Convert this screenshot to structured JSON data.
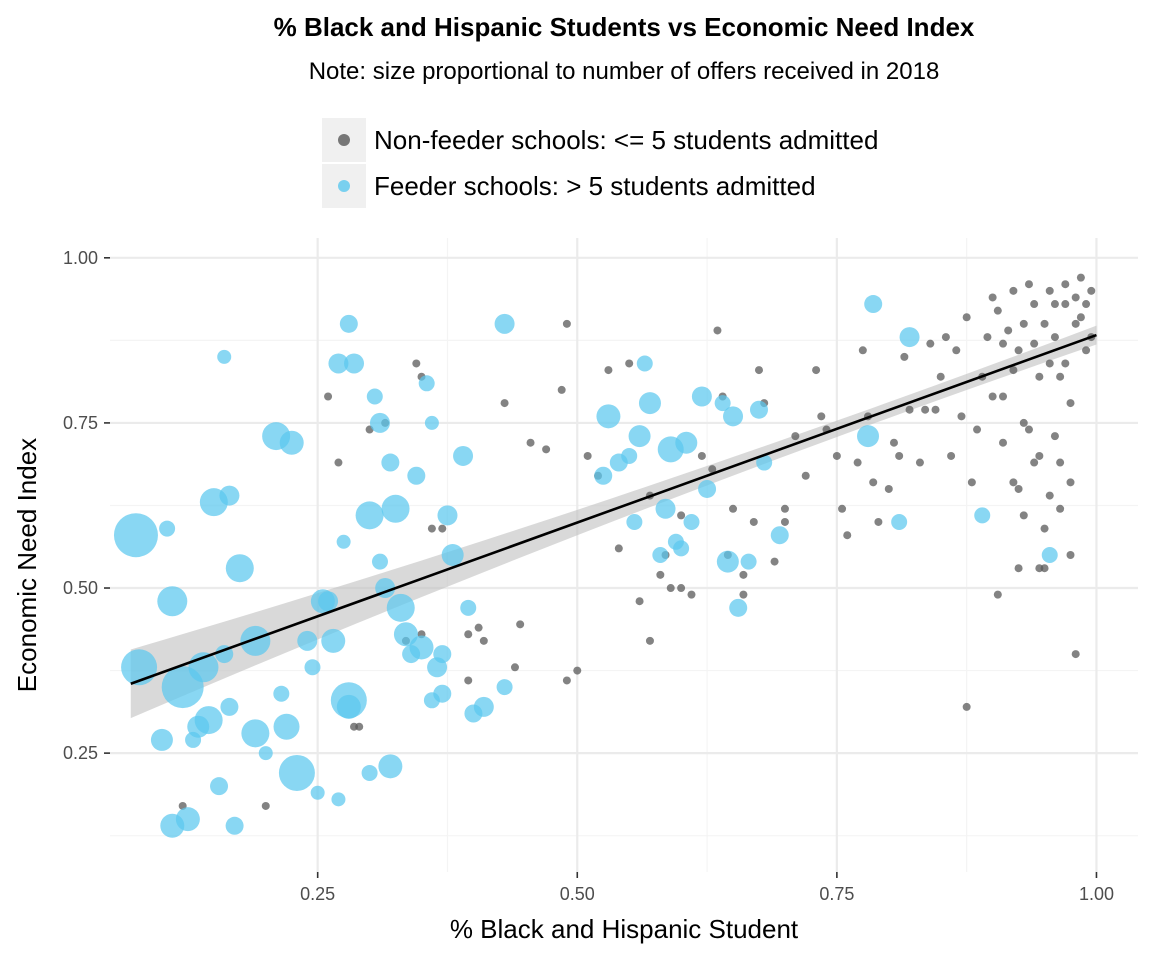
{
  "chart_data": {
    "type": "scatter",
    "title": "% Black and Hispanic Students vs Economic Need Index",
    "subtitle": "Note: size proportional to number of offers received in 2018",
    "xlabel": "% Black and Hispanic Student",
    "ylabel": "Economic Need Index",
    "xlim": [
      0.05,
      1.04
    ],
    "ylim": [
      0.07,
      1.03
    ],
    "x_ticks": [
      "0.25",
      "0.50",
      "0.75",
      "1.00"
    ],
    "y_ticks": [
      "0.25",
      "0.50",
      "0.75",
      "1.00"
    ],
    "grid": true,
    "legend_position": "top",
    "colors": {
      "non_feeder": "#595959",
      "feeder": "#5bc8ef",
      "trend": "#000000",
      "band": "#bfbfbf"
    },
    "trend_line": {
      "x": [
        0.07,
        1.0
      ],
      "y": [
        0.355,
        0.883
      ]
    },
    "series": [
      {
        "name": "Non-feeder schools: <= 5 students admitted",
        "key": "non_feeder",
        "points": [
          [
            0.26,
            0.79
          ],
          [
            0.27,
            0.69
          ],
          [
            0.285,
            0.29
          ],
          [
            0.29,
            0.29
          ],
          [
            0.3,
            0.74
          ],
          [
            0.315,
            0.75
          ],
          [
            0.345,
            0.84
          ],
          [
            0.35,
            0.82
          ],
          [
            0.36,
            0.59
          ],
          [
            0.37,
            0.59
          ],
          [
            0.395,
            0.43
          ],
          [
            0.405,
            0.44
          ],
          [
            0.43,
            0.78
          ],
          [
            0.44,
            0.38
          ],
          [
            0.445,
            0.445
          ],
          [
            0.455,
            0.72
          ],
          [
            0.47,
            0.71
          ],
          [
            0.485,
            0.8
          ],
          [
            0.49,
            0.9
          ],
          [
            0.49,
            0.36
          ],
          [
            0.5,
            0.375
          ],
          [
            0.51,
            0.7
          ],
          [
            0.52,
            0.67
          ],
          [
            0.53,
            0.83
          ],
          [
            0.54,
            0.56
          ],
          [
            0.55,
            0.84
          ],
          [
            0.56,
            0.48
          ],
          [
            0.57,
            0.64
          ],
          [
            0.58,
            0.52
          ],
          [
            0.585,
            0.55
          ],
          [
            0.59,
            0.5
          ],
          [
            0.6,
            0.61
          ],
          [
            0.61,
            0.49
          ],
          [
            0.62,
            0.7
          ],
          [
            0.63,
            0.68
          ],
          [
            0.635,
            0.89
          ],
          [
            0.64,
            0.79
          ],
          [
            0.645,
            0.55
          ],
          [
            0.65,
            0.62
          ],
          [
            0.66,
            0.52
          ],
          [
            0.67,
            0.6
          ],
          [
            0.675,
            0.83
          ],
          [
            0.68,
            0.78
          ],
          [
            0.69,
            0.54
          ],
          [
            0.7,
            0.62
          ],
          [
            0.71,
            0.73
          ],
          [
            0.72,
            0.67
          ],
          [
            0.73,
            0.83
          ],
          [
            0.735,
            0.76
          ],
          [
            0.74,
            0.74
          ],
          [
            0.75,
            0.7
          ],
          [
            0.755,
            0.62
          ],
          [
            0.76,
            0.58
          ],
          [
            0.77,
            0.69
          ],
          [
            0.775,
            0.86
          ],
          [
            0.78,
            0.76
          ],
          [
            0.785,
            0.66
          ],
          [
            0.79,
            0.6
          ],
          [
            0.8,
            0.65
          ],
          [
            0.805,
            0.72
          ],
          [
            0.81,
            0.7
          ],
          [
            0.815,
            0.85
          ],
          [
            0.82,
            0.77
          ],
          [
            0.83,
            0.69
          ],
          [
            0.835,
            0.77
          ],
          [
            0.84,
            0.87
          ],
          [
            0.845,
            0.77
          ],
          [
            0.85,
            0.82
          ],
          [
            0.855,
            0.88
          ],
          [
            0.86,
            0.7
          ],
          [
            0.865,
            0.86
          ],
          [
            0.87,
            0.76
          ],
          [
            0.875,
            0.91
          ],
          [
            0.88,
            0.66
          ],
          [
            0.885,
            0.74
          ],
          [
            0.89,
            0.82
          ],
          [
            0.895,
            0.88
          ],
          [
            0.9,
            0.79
          ],
          [
            0.905,
            0.92
          ],
          [
            0.91,
            0.72
          ],
          [
            0.915,
            0.89
          ],
          [
            0.92,
            0.95
          ],
          [
            0.925,
            0.86
          ],
          [
            0.93,
            0.61
          ],
          [
            0.935,
            0.74
          ],
          [
            0.94,
            0.93
          ],
          [
            0.945,
            0.82
          ],
          [
            0.95,
            0.53
          ],
          [
            0.955,
            0.95
          ],
          [
            0.96,
            0.88
          ],
          [
            0.965,
            0.69
          ],
          [
            0.97,
            0.93
          ],
          [
            0.975,
            0.78
          ],
          [
            0.98,
            0.4
          ],
          [
            0.985,
            0.91
          ],
          [
            0.99,
            0.86
          ],
          [
            0.995,
            0.95
          ],
          [
            0.92,
            0.66
          ],
          [
            0.93,
            0.75
          ],
          [
            0.94,
            0.69
          ],
          [
            0.95,
            0.59
          ],
          [
            0.96,
            0.73
          ],
          [
            0.91,
            0.79
          ],
          [
            0.97,
            0.84
          ],
          [
            0.98,
            0.9
          ],
          [
            0.875,
            0.32
          ],
          [
            0.905,
            0.49
          ],
          [
            0.925,
            0.53
          ],
          [
            0.945,
            0.53
          ],
          [
            0.965,
            0.62
          ],
          [
            0.975,
            0.55
          ],
          [
            0.92,
            0.83
          ],
          [
            0.93,
            0.9
          ],
          [
            0.94,
            0.87
          ],
          [
            0.95,
            0.9
          ],
          [
            0.96,
            0.93
          ],
          [
            0.97,
            0.96
          ],
          [
            0.98,
            0.94
          ],
          [
            0.99,
            0.93
          ],
          [
            0.9,
            0.94
          ],
          [
            0.91,
            0.87
          ],
          [
            0.935,
            0.96
          ],
          [
            0.955,
            0.84
          ],
          [
            0.965,
            0.82
          ],
          [
            0.985,
            0.97
          ],
          [
            0.2,
            0.17
          ],
          [
            0.12,
            0.17
          ],
          [
            0.35,
            0.43
          ],
          [
            0.335,
            0.42
          ],
          [
            0.41,
            0.42
          ],
          [
            0.395,
            0.36
          ],
          [
            0.57,
            0.42
          ],
          [
            0.6,
            0.5
          ],
          [
            0.66,
            0.49
          ],
          [
            0.7,
            0.6
          ],
          [
            0.925,
            0.65
          ],
          [
            0.945,
            0.7
          ],
          [
            0.955,
            0.64
          ],
          [
            0.975,
            0.66
          ],
          [
            0.995,
            0.88
          ]
        ]
      },
      {
        "name": "Feeder schools: > 5 students admitted",
        "key": "feeder",
        "points": [
          [
            0.075,
            0.58,
            22
          ],
          [
            0.078,
            0.38,
            18
          ],
          [
            0.1,
            0.27,
            11
          ],
          [
            0.105,
            0.59,
            8
          ],
          [
            0.11,
            0.48,
            15
          ],
          [
            0.11,
            0.14,
            12
          ],
          [
            0.12,
            0.35,
            21
          ],
          [
            0.125,
            0.15,
            12
          ],
          [
            0.13,
            0.27,
            8
          ],
          [
            0.135,
            0.29,
            11
          ],
          [
            0.14,
            0.38,
            15
          ],
          [
            0.145,
            0.3,
            14
          ],
          [
            0.15,
            0.63,
            14
          ],
          [
            0.155,
            0.2,
            9
          ],
          [
            0.16,
            0.85,
            7
          ],
          [
            0.165,
            0.64,
            10
          ],
          [
            0.17,
            0.14,
            9
          ],
          [
            0.175,
            0.53,
            14
          ],
          [
            0.19,
            0.42,
            15
          ],
          [
            0.19,
            0.28,
            14
          ],
          [
            0.2,
            0.25,
            7
          ],
          [
            0.21,
            0.73,
            14
          ],
          [
            0.215,
            0.34,
            8
          ],
          [
            0.22,
            0.29,
            13
          ],
          [
            0.225,
            0.72,
            12
          ],
          [
            0.23,
            0.22,
            18
          ],
          [
            0.24,
            0.42,
            10
          ],
          [
            0.245,
            0.38,
            8
          ],
          [
            0.25,
            0.19,
            7
          ],
          [
            0.255,
            0.48,
            12
          ],
          [
            0.26,
            0.48,
            10
          ],
          [
            0.265,
            0.42,
            12
          ],
          [
            0.27,
            0.84,
            10
          ],
          [
            0.27,
            0.18,
            7
          ],
          [
            0.275,
            0.57,
            7
          ],
          [
            0.28,
            0.9,
            9
          ],
          [
            0.285,
            0.84,
            10
          ],
          [
            0.28,
            0.33,
            18
          ],
          [
            0.3,
            0.61,
            14
          ],
          [
            0.3,
            0.22,
            8
          ],
          [
            0.305,
            0.79,
            8
          ],
          [
            0.31,
            0.75,
            10
          ],
          [
            0.31,
            0.54,
            8
          ],
          [
            0.315,
            0.5,
            10
          ],
          [
            0.32,
            0.69,
            9
          ],
          [
            0.32,
            0.23,
            12
          ],
          [
            0.325,
            0.62,
            14
          ],
          [
            0.33,
            0.47,
            14
          ],
          [
            0.335,
            0.43,
            12
          ],
          [
            0.34,
            0.4,
            9
          ],
          [
            0.345,
            0.67,
            9
          ],
          [
            0.35,
            0.41,
            12
          ],
          [
            0.355,
            0.81,
            8
          ],
          [
            0.36,
            0.75,
            7
          ],
          [
            0.36,
            0.33,
            8
          ],
          [
            0.365,
            0.38,
            10
          ],
          [
            0.37,
            0.34,
            9
          ],
          [
            0.375,
            0.61,
            10
          ],
          [
            0.38,
            0.55,
            11
          ],
          [
            0.39,
            0.7,
            10
          ],
          [
            0.395,
            0.47,
            8
          ],
          [
            0.4,
            0.31,
            9
          ],
          [
            0.41,
            0.32,
            10
          ],
          [
            0.43,
            0.35,
            8
          ],
          [
            0.43,
            0.9,
            10
          ],
          [
            0.525,
            0.67,
            9
          ],
          [
            0.53,
            0.76,
            12
          ],
          [
            0.54,
            0.69,
            9
          ],
          [
            0.55,
            0.7,
            8
          ],
          [
            0.555,
            0.6,
            8
          ],
          [
            0.56,
            0.73,
            11
          ],
          [
            0.565,
            0.84,
            8
          ],
          [
            0.57,
            0.78,
            11
          ],
          [
            0.58,
            0.55,
            8
          ],
          [
            0.585,
            0.62,
            10
          ],
          [
            0.59,
            0.71,
            13
          ],
          [
            0.595,
            0.57,
            8
          ],
          [
            0.6,
            0.56,
            8
          ],
          [
            0.605,
            0.72,
            11
          ],
          [
            0.61,
            0.6,
            8
          ],
          [
            0.62,
            0.79,
            10
          ],
          [
            0.625,
            0.65,
            9
          ],
          [
            0.64,
            0.78,
            8
          ],
          [
            0.645,
            0.54,
            11
          ],
          [
            0.65,
            0.76,
            10
          ],
          [
            0.655,
            0.47,
            9
          ],
          [
            0.665,
            0.54,
            8
          ],
          [
            0.675,
            0.77,
            9
          ],
          [
            0.68,
            0.69,
            8
          ],
          [
            0.695,
            0.58,
            9
          ],
          [
            0.78,
            0.73,
            11
          ],
          [
            0.785,
            0.93,
            9
          ],
          [
            0.81,
            0.6,
            8
          ],
          [
            0.82,
            0.88,
            10
          ],
          [
            0.89,
            0.61,
            8
          ],
          [
            0.955,
            0.55,
            8
          ],
          [
            0.165,
            0.32,
            9
          ],
          [
            0.28,
            0.32,
            12
          ],
          [
            0.37,
            0.4,
            9
          ],
          [
            0.16,
            0.4,
            9
          ]
        ]
      }
    ]
  },
  "legend": {
    "items": [
      {
        "label": "Non-feeder schools: <= 5 students admitted"
      },
      {
        "label": "Feeder schools: > 5 students admitted"
      }
    ]
  }
}
